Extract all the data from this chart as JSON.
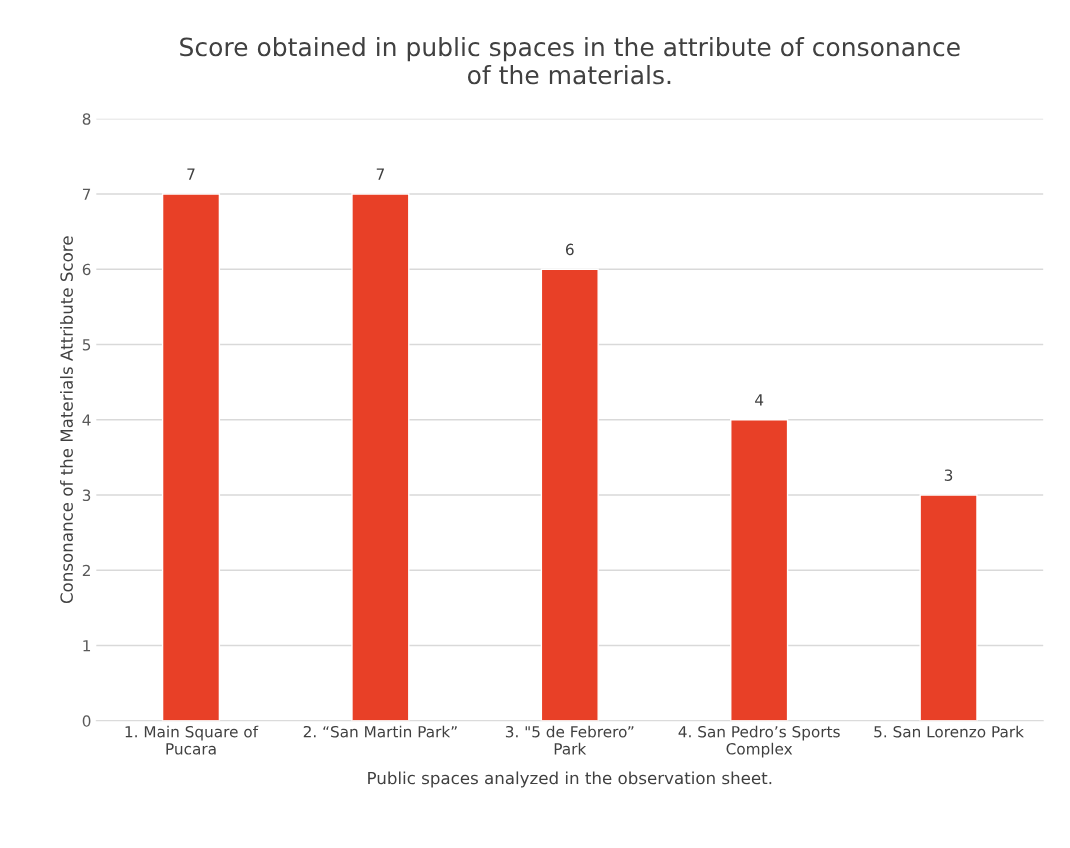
{
  "chart_data": {
    "type": "bar",
    "title": "Score obtained in public spaces in the attribute of consonance\nof the materials.",
    "xlabel": "Public spaces analyzed in the observation sheet.",
    "ylabel": "Consonance of the Materials Attribute Score",
    "categories": [
      "1. Main Square of\nPucara",
      "2. “San Martin Park”",
      "3. \"5 de Febrero”\nPark",
      "4. San Pedro’s Sports\nComplex",
      "5. San Lorenzo Park"
    ],
    "values": [
      7,
      7,
      6,
      4,
      3
    ],
    "color": "#e84027",
    "ylim": [
      0,
      8
    ],
    "yticks": [
      0,
      1,
      2,
      3,
      4,
      5,
      6,
      7,
      8
    ],
    "grid": "y",
    "data_labels": true
  }
}
